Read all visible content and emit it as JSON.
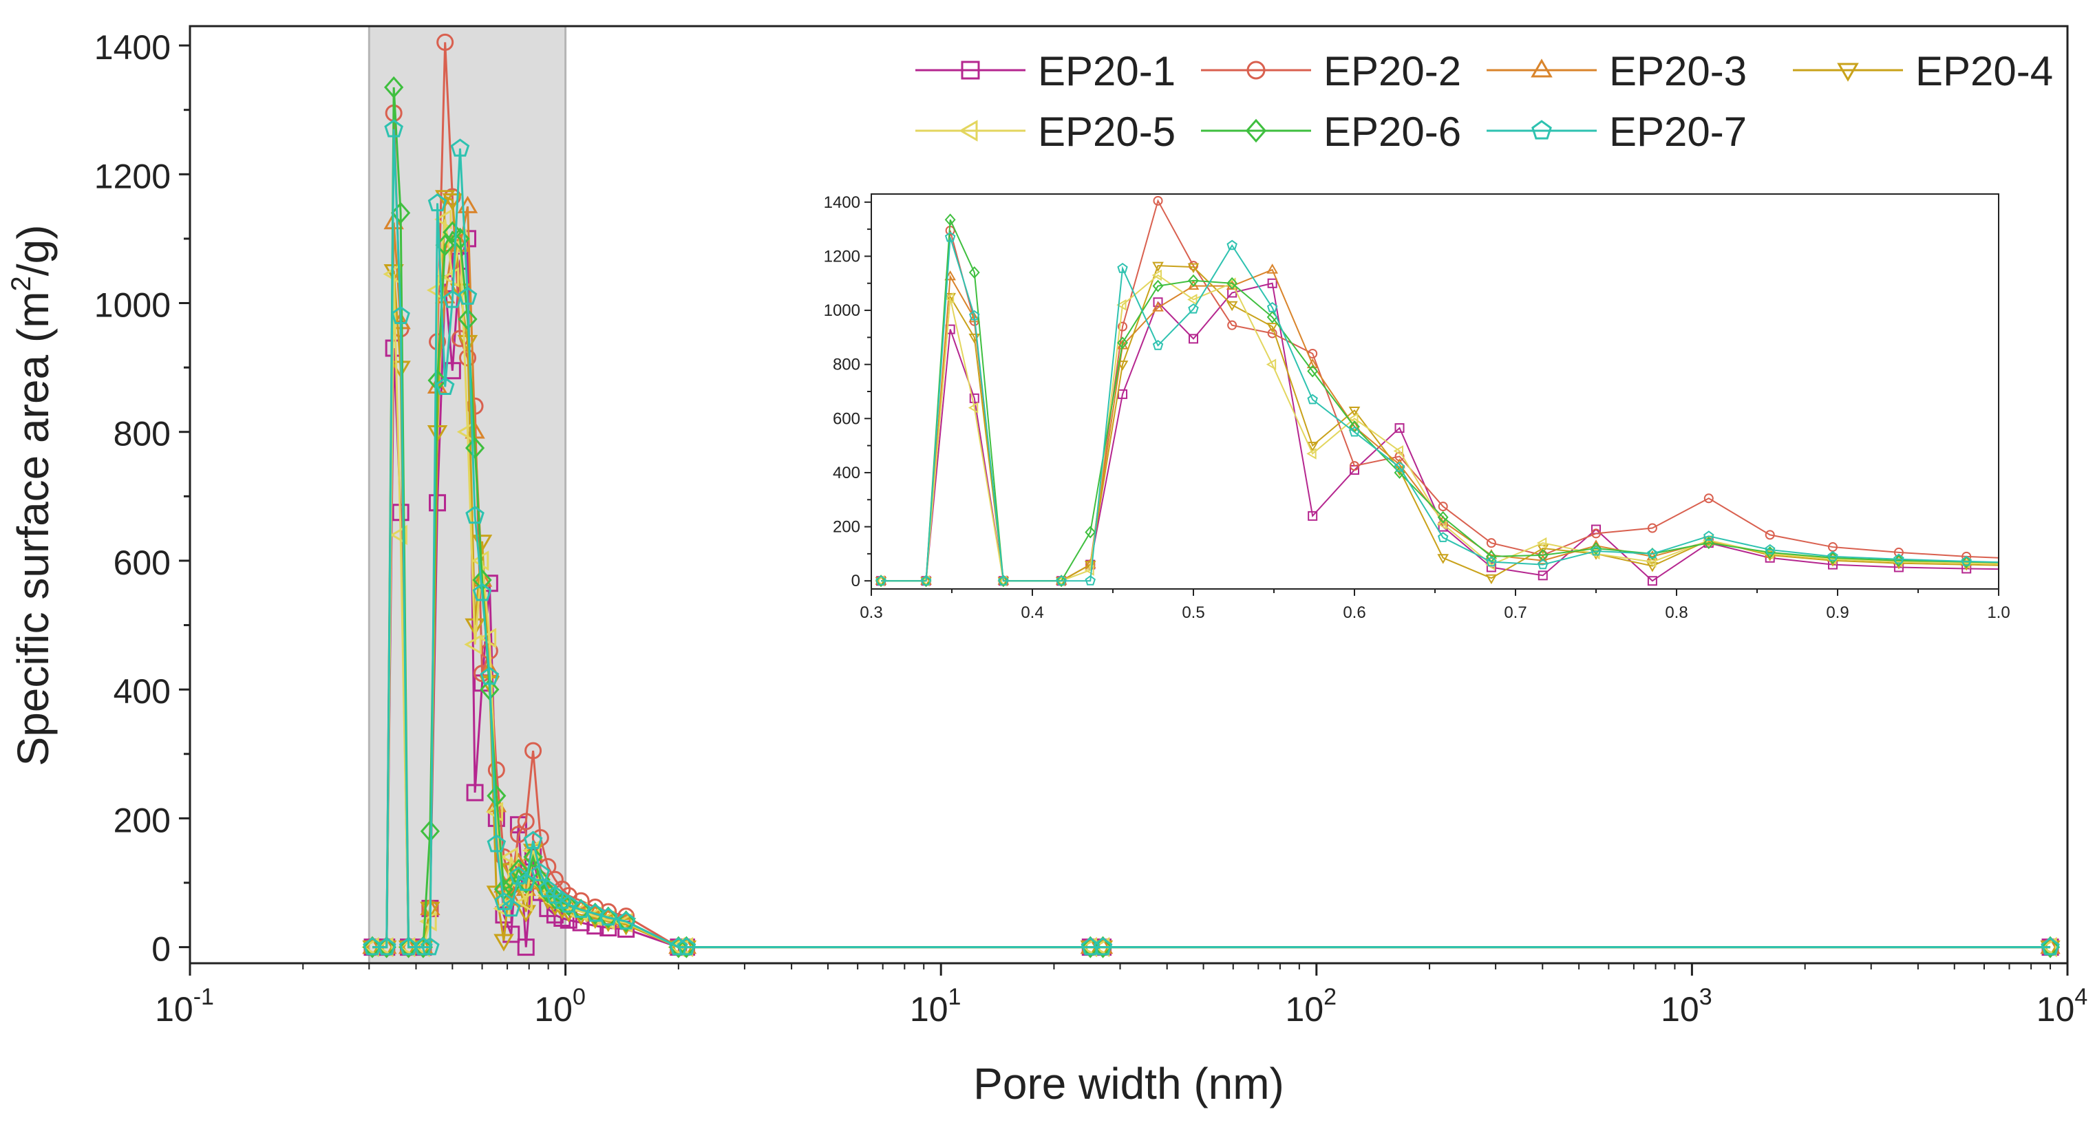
{
  "chart_data": [
    {
      "type": "line",
      "x_scale": "log",
      "xlabel": "Pore width (nm)",
      "ylabel_main": "Specific surface area (m",
      "ylabel_sup": "2",
      "ylabel_tail": "/g)",
      "xlim": [
        0.1,
        10000
      ],
      "ylim": [
        -25,
        1430
      ],
      "x_ticks": [
        {
          "value": 0.1,
          "base": "10",
          "exp": "-1"
        },
        {
          "value": 1,
          "base": "10",
          "exp": "0"
        },
        {
          "value": 10,
          "base": "10",
          "exp": "1"
        },
        {
          "value": 100,
          "base": "10",
          "exp": "2"
        },
        {
          "value": 1000,
          "base": "10",
          "exp": "3"
        },
        {
          "value": 10000,
          "base": "10",
          "exp": "4"
        }
      ],
      "y_ticks": [
        0,
        200,
        400,
        600,
        800,
        1000,
        1200,
        1400
      ],
      "y_tick_labels": [
        "0",
        "200",
        "400",
        "600",
        "800",
        "1000",
        "1200",
        "1400"
      ],
      "highlight_range": [
        0.3,
        1.0
      ],
      "legend_position": "top-right"
    },
    {
      "type": "line",
      "title": "inset",
      "xlim": [
        0.3,
        1.0
      ],
      "ylim": [
        -30,
        1430
      ],
      "x_ticks": [
        0.3,
        0.4,
        0.5,
        0.6,
        0.7,
        0.8,
        0.9,
        1.0
      ],
      "x_tick_labels": [
        "0.3",
        "0.4",
        "0.5",
        "0.6",
        "0.7",
        "0.8",
        "0.9",
        "1.0"
      ],
      "y_ticks": [
        0,
        200,
        400,
        600,
        800,
        1000,
        1200,
        1400
      ],
      "y_tick_labels": [
        "0",
        "200",
        "400",
        "600",
        "800",
        "1000",
        "1200",
        "1400"
      ]
    }
  ],
  "x": [
    0.306,
    0.334,
    0.349,
    0.364,
    0.382,
    0.418,
    0.436,
    0.456,
    0.478,
    0.5,
    0.524,
    0.549,
    0.574,
    0.6,
    0.628,
    0.655,
    0.685,
    0.717,
    0.75,
    0.785,
    0.82,
    0.858,
    0.897,
    0.938,
    0.98,
    1.02,
    1.1,
    1.2,
    1.3,
    1.45,
    2.0,
    2.1,
    25,
    27,
    9000
  ],
  "series": [
    {
      "name": "EP20-1",
      "color": "#B5268F",
      "marker": "square",
      "values": [
        0,
        0,
        930,
        675,
        0,
        0,
        60,
        690,
        1030,
        895,
        1065,
        1100,
        240,
        410,
        565,
        200,
        50,
        20,
        190,
        0,
        140,
        85,
        60,
        50,
        45,
        42,
        38,
        33,
        30,
        28,
        0,
        0,
        0,
        0,
        0
      ]
    },
    {
      "name": "EP20-2",
      "color": "#D9604F",
      "marker": "circle",
      "values": [
        0,
        0,
        1295,
        960,
        0,
        0,
        60,
        940,
        1405,
        1165,
        945,
        915,
        840,
        425,
        460,
        275,
        140,
        95,
        175,
        195,
        305,
        170,
        125,
        105,
        90,
        80,
        72,
        62,
        55,
        48,
        0,
        0,
        0,
        0,
        0
      ]
    },
    {
      "name": "EP20-3",
      "color": "#D9842B",
      "marker": "triangle-up",
      "values": [
        0,
        0,
        1125,
        970,
        0,
        0,
        60,
        870,
        1010,
        1090,
        1090,
        1150,
        800,
        570,
        430,
        220,
        95,
        75,
        130,
        90,
        145,
        100,
        85,
        75,
        70,
        65,
        58,
        50,
        45,
        40,
        0,
        0,
        0,
        0,
        0
      ]
    },
    {
      "name": "EP20-4",
      "color": "#C9A21A",
      "marker": "triangle-down",
      "values": [
        0,
        0,
        1050,
        900,
        0,
        0,
        60,
        800,
        1165,
        1160,
        1020,
        940,
        500,
        630,
        410,
        85,
        10,
        120,
        100,
        55,
        150,
        95,
        75,
        65,
        60,
        55,
        50,
        45,
        40,
        35,
        0,
        0,
        0,
        0,
        0
      ]
    },
    {
      "name": "EP20-5",
      "color": "#E3D65E",
      "marker": "triangle-left",
      "values": [
        0,
        0,
        1045,
        640,
        0,
        0,
        40,
        1020,
        1130,
        1040,
        1100,
        800,
        470,
        600,
        480,
        210,
        60,
        140,
        100,
        70,
        150,
        100,
        80,
        70,
        65,
        60,
        55,
        48,
        42,
        38,
        0,
        0,
        0,
        0,
        0
      ]
    },
    {
      "name": "EP20-6",
      "color": "#3FBF3F",
      "marker": "diamond",
      "values": [
        0,
        0,
        1335,
        1140,
        0,
        0,
        180,
        880,
        1090,
        1110,
        1100,
        975,
        775,
        570,
        400,
        235,
        90,
        95,
        120,
        100,
        140,
        105,
        85,
        75,
        70,
        65,
        58,
        52,
        46,
        40,
        0,
        0,
        0,
        0,
        0
      ]
    },
    {
      "name": "EP20-7",
      "color": "#2EC2B0",
      "marker": "pentagon",
      "values": [
        0,
        0,
        1270,
        980,
        0,
        0,
        0,
        1155,
        870,
        1005,
        1240,
        1010,
        670,
        550,
        420,
        160,
        70,
        60,
        110,
        100,
        165,
        115,
        90,
        80,
        72,
        66,
        58,
        52,
        46,
        40,
        0,
        0,
        0,
        0,
        0
      ]
    }
  ]
}
